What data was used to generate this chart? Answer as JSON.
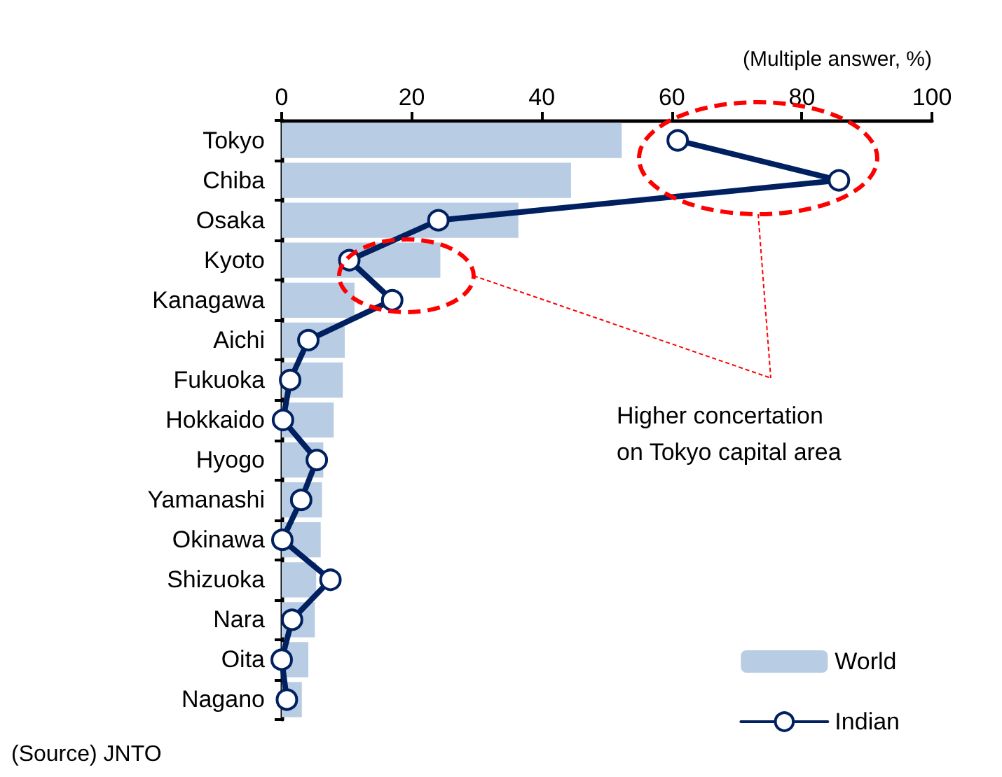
{
  "chart_data": {
    "type": "bar",
    "orientation": "horizontal",
    "xlabel": "(Multiple answer, %)",
    "categories": [
      "Tokyo",
      "Chiba",
      "Osaka",
      "Kyoto",
      "Kanagawa",
      "Aichi",
      "Fukuoka",
      "Hokkaido",
      "Hyogo",
      "Yamanashi",
      "Okinawa",
      "Shizuoka",
      "Nara",
      "Oita",
      "Nagano"
    ],
    "series": [
      {
        "name": "World",
        "color": "#b8cce4",
        "values": [
          52.3,
          44.5,
          36.4,
          24.4,
          11.2,
          9.7,
          9.4,
          8.0,
          6.4,
          6.2,
          6.0,
          5.3,
          5.1,
          4.1,
          3.1
        ]
      },
      {
        "name": "Indian",
        "type": "line",
        "color": "#002060",
        "values": [
          60.9,
          85.7,
          24.1,
          10.4,
          17.0,
          4.1,
          1.3,
          0.2,
          5.4,
          3.0,
          0.1,
          7.5,
          1.6,
          0,
          0.8
        ]
      }
    ],
    "xlim": [
      0,
      100
    ],
    "xticks": [
      0,
      20,
      40,
      60,
      80,
      100
    ],
    "grid": false,
    "legend": "bottom right",
    "marker": "circle",
    "line_style": "solid",
    "annotations": [
      "Higher concertation\non Tokyo capital area",
      "(Source) JNTO"
    ]
  }
}
